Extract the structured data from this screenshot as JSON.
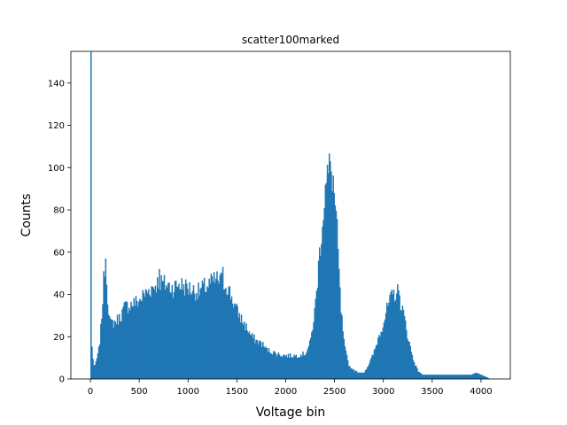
{
  "chart_data": {
    "type": "bar",
    "title": "scatter100marked",
    "xlabel": "Voltage bin",
    "ylabel": "Counts",
    "xlim": [
      -200,
      4300
    ],
    "ylim": [
      0,
      155
    ],
    "x_ticks": [
      0,
      500,
      1000,
      1500,
      2000,
      2500,
      3000,
      3500,
      4000
    ],
    "y_ticks": [
      0,
      20,
      40,
      60,
      80,
      100,
      120,
      140
    ],
    "grid": false,
    "bar_color": "#1f77b4",
    "bin_width": 10,
    "profile": [
      [
        -10,
        0
      ],
      [
        0,
        155
      ],
      [
        10,
        18
      ],
      [
        20,
        12
      ],
      [
        30,
        8
      ],
      [
        40,
        5
      ],
      [
        60,
        9
      ],
      [
        80,
        12
      ],
      [
        100,
        20
      ],
      [
        120,
        34
      ],
      [
        140,
        50
      ],
      [
        150,
        57
      ],
      [
        160,
        49
      ],
      [
        180,
        36
      ],
      [
        200,
        26
      ],
      [
        250,
        27
      ],
      [
        300,
        29
      ],
      [
        350,
        34
      ],
      [
        400,
        35
      ],
      [
        450,
        36
      ],
      [
        500,
        37
      ],
      [
        550,
        40
      ],
      [
        600,
        42
      ],
      [
        650,
        44
      ],
      [
        700,
        46
      ],
      [
        750,
        45
      ],
      [
        800,
        44
      ],
      [
        850,
        43
      ],
      [
        900,
        45
      ],
      [
        950,
        44
      ],
      [
        1000,
        43
      ],
      [
        1050,
        42
      ],
      [
        1100,
        41
      ],
      [
        1150,
        43
      ],
      [
        1200,
        44
      ],
      [
        1250,
        46
      ],
      [
        1300,
        47
      ],
      [
        1350,
        46
      ],
      [
        1400,
        44
      ],
      [
        1450,
        38
      ],
      [
        1500,
        32
      ],
      [
        1550,
        28
      ],
      [
        1600,
        24
      ],
      [
        1650,
        20
      ],
      [
        1700,
        18
      ],
      [
        1750,
        17
      ],
      [
        1800,
        14
      ],
      [
        1850,
        13
      ],
      [
        1900,
        12
      ],
      [
        2000,
        11
      ],
      [
        2100,
        11
      ],
      [
        2200,
        12
      ],
      [
        2250,
        17
      ],
      [
        2300,
        33
      ],
      [
        2350,
        62
      ],
      [
        2400,
        88
      ],
      [
        2450,
        100
      ],
      [
        2480,
        96
      ],
      [
        2500,
        85
      ],
      [
        2530,
        65
      ],
      [
        2560,
        35
      ],
      [
        2600,
        15
      ],
      [
        2650,
        6
      ],
      [
        2700,
        4
      ],
      [
        2750,
        3
      ],
      [
        2800,
        3
      ],
      [
        2850,
        7
      ],
      [
        2900,
        12
      ],
      [
        2950,
        20
      ],
      [
        3000,
        27
      ],
      [
        3050,
        35
      ],
      [
        3100,
        40
      ],
      [
        3150,
        41
      ],
      [
        3200,
        32
      ],
      [
        3250,
        20
      ],
      [
        3300,
        10
      ],
      [
        3350,
        4
      ],
      [
        3400,
        2
      ],
      [
        3500,
        2
      ],
      [
        3600,
        2
      ],
      [
        3700,
        2
      ],
      [
        3800,
        2
      ],
      [
        3900,
        2
      ],
      [
        3950,
        3
      ],
      [
        4000,
        2
      ],
      [
        4050,
        1
      ],
      [
        4090,
        0
      ]
    ],
    "peaks": [
      {
        "x": 0,
        "value": 155
      },
      {
        "x": 150,
        "value": 57
      },
      {
        "x": 700,
        "value": 52
      },
      {
        "x": 1350,
        "value": 53
      },
      {
        "x": 2450,
        "value": 103
      },
      {
        "x": 3150,
        "value": 42
      }
    ]
  }
}
